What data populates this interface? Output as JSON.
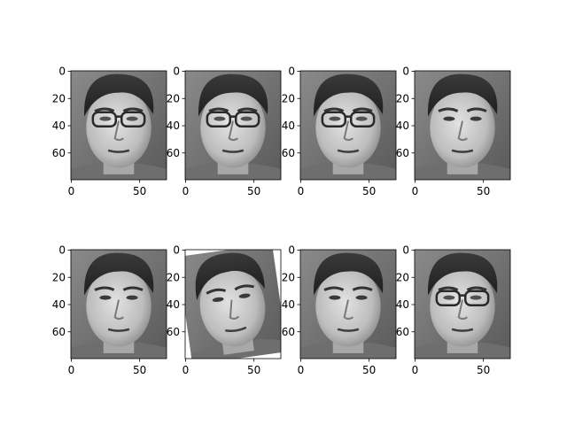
{
  "figure": {
    "rows": 2,
    "cols": 4,
    "image_shape": {
      "width": 70,
      "height": 80
    },
    "colormap": "gray",
    "axis_color": "#000000",
    "xticks": [
      0,
      50
    ],
    "yticks": [
      0,
      20,
      40,
      60
    ],
    "xtick_labels": [
      "0",
      "50"
    ],
    "ytick_labels": [
      "0",
      "20",
      "40",
      "60"
    ]
  },
  "panels": [
    {
      "glasses": true,
      "gaze": "front"
    },
    {
      "glasses": true,
      "gaze": "front"
    },
    {
      "glasses": true,
      "gaze": "front"
    },
    {
      "glasses": false,
      "gaze": "front"
    },
    {
      "glasses": false,
      "gaze": "front"
    },
    {
      "glasses": false,
      "gaze": "tilted"
    },
    {
      "glasses": false,
      "gaze": "front"
    },
    {
      "glasses": true,
      "gaze": "front"
    }
  ]
}
